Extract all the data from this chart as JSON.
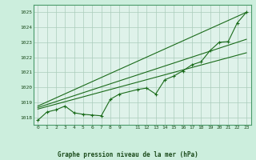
{
  "title": "Graphe pression niveau de la mer (hPa)",
  "background_color": "#cceedd",
  "plot_background": "#dff2ea",
  "grid_color": "#aaccbb",
  "line_color": "#1a6b1a",
  "border_color": "#4a9a6a",
  "xlim": [
    -0.5,
    23.5
  ],
  "ylim": [
    1017.5,
    1025.5
  ],
  "yticks": [
    1018,
    1019,
    1020,
    1021,
    1022,
    1023,
    1024,
    1025
  ],
  "xtick_labels": [
    "0",
    "1",
    "2",
    "3",
    "4",
    "5",
    "6",
    "7",
    "8",
    "9",
    "",
    "11",
    "12",
    "13",
    "14",
    "15",
    "16",
    "17",
    "18",
    "19",
    "20",
    "21",
    "22",
    "23"
  ],
  "series_main": {
    "x": [
      0,
      1,
      2,
      3,
      4,
      5,
      6,
      7,
      8,
      9,
      11,
      12,
      13,
      14,
      15,
      16,
      17,
      18,
      19,
      20,
      21,
      22,
      23
    ],
    "y": [
      1017.8,
      1018.35,
      1018.5,
      1018.75,
      1018.3,
      1018.2,
      1018.15,
      1018.1,
      1019.2,
      1019.55,
      1019.85,
      1019.95,
      1019.55,
      1020.5,
      1020.75,
      1021.1,
      1021.5,
      1021.7,
      1022.45,
      1023.0,
      1023.05,
      1024.3,
      1025.0
    ]
  },
  "series_lines": [
    {
      "x0": 0,
      "y0": 1018.55,
      "x1": 23,
      "y1": 1022.3
    },
    {
      "x0": 0,
      "y0": 1018.65,
      "x1": 23,
      "y1": 1023.2
    },
    {
      "x0": 0,
      "y0": 1018.75,
      "x1": 23,
      "y1": 1025.0
    }
  ]
}
